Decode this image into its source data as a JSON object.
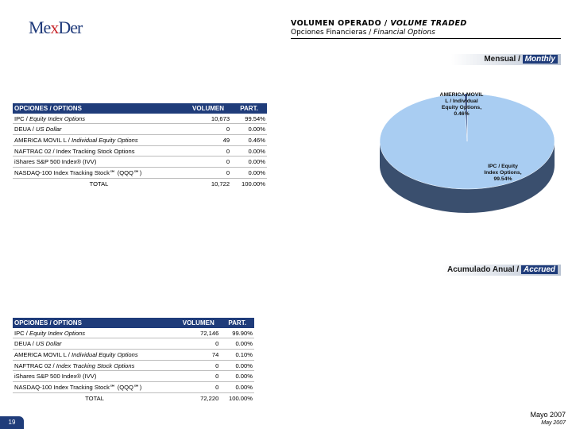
{
  "logo": {
    "part1": "Me",
    "part2": "x",
    "part3": "Der"
  },
  "header": {
    "title_es": "VOLUMEN OPERADO / ",
    "title_en": "VOLUME TRADED",
    "subtitle_es": "Opciones Financieras / ",
    "subtitle_en": "Financial Options"
  },
  "monthly": {
    "banner_es": "Mensual / ",
    "banner_en": "Monthly",
    "table": {
      "headers": [
        "OPCIONES / OPTIONS",
        "VOLUMEN",
        "PART."
      ],
      "rows": [
        {
          "name_es": "IPC / ",
          "name_en": "Equity Index Options",
          "volume": "10,673",
          "part": "99.54%"
        },
        {
          "name_es": "DEUA / ",
          "name_en": "US Dollar",
          "volume": "0",
          "part": "0.00%"
        },
        {
          "name_es": "AMERICA MOVIL L / ",
          "name_en": "Individual Equity Options",
          "volume": "49",
          "part": "0.46%"
        },
        {
          "name_es": "NAFTRAC 02 / Index Tracking Stock Options",
          "name_en": "",
          "volume": "0",
          "part": "0.00%"
        },
        {
          "name_es": "iShares S&P 500 Index® (IVV)",
          "name_en": "",
          "volume": "0",
          "part": "0.00%"
        },
        {
          "name_es": "NASDAQ-100 Index Tracking Stock℠ (QQQ℠)",
          "name_en": "",
          "volume": "0",
          "part": "0.00%"
        }
      ],
      "total": {
        "label": "TOTAL",
        "volume": "10,722",
        "part": "100.00%"
      }
    }
  },
  "accrued": {
    "banner_es": "Acumulado Anual / ",
    "banner_en": "Accrued",
    "table": {
      "headers": [
        "OPCIONES / OPTIONS",
        "VOLUMEN",
        "PART."
      ],
      "rows": [
        {
          "name_es": "IPC / ",
          "name_en": "Equity Index Options",
          "volume": "72,146",
          "part": "99.90%"
        },
        {
          "name_es": "DEUA / ",
          "name_en": "US Dollar",
          "volume": "0",
          "part": "0.00%"
        },
        {
          "name_es": "AMERICA MOVIL L / ",
          "name_en": "Individual Equity Options",
          "volume": "74",
          "part": "0.10%"
        },
        {
          "name_es": "NAFTRAC 02 / ",
          "name_en": "Index Tracking Stock Options",
          "volume": "0",
          "part": "0.00%"
        },
        {
          "name_es": "iShares S&P 500 Index® (IVV)",
          "name_en": "",
          "volume": "0",
          "part": "0.00%"
        },
        {
          "name_es": "NASDAQ-100 Index Tracking Stock℠ (QQQ℠)",
          "name_en": "",
          "volume": "0",
          "part": "0.00%"
        }
      ],
      "total": {
        "label": "TOTAL",
        "volume": "72,220",
        "part": "100.00%"
      }
    }
  },
  "chart_data": {
    "type": "pie",
    "categories": [
      "IPC / Equity Index Options",
      "AMERICA MOVIL L / Individual Equity Options"
    ],
    "values": [
      99.54,
      0.46
    ],
    "slice_labels": [
      [
        "IPC / Equity",
        "Index Options,",
        "99.54%"
      ],
      [
        "AMERICA MOVIL",
        "L / Individual",
        "Equity Options,",
        "0.46%"
      ]
    ],
    "colors": [
      "#a9cdf2",
      "#1f3c7a"
    ],
    "side_color": "#3a4f6e"
  },
  "footer": {
    "date_es": "Mayo 2007",
    "date_en": "May 2007",
    "page": "19"
  }
}
